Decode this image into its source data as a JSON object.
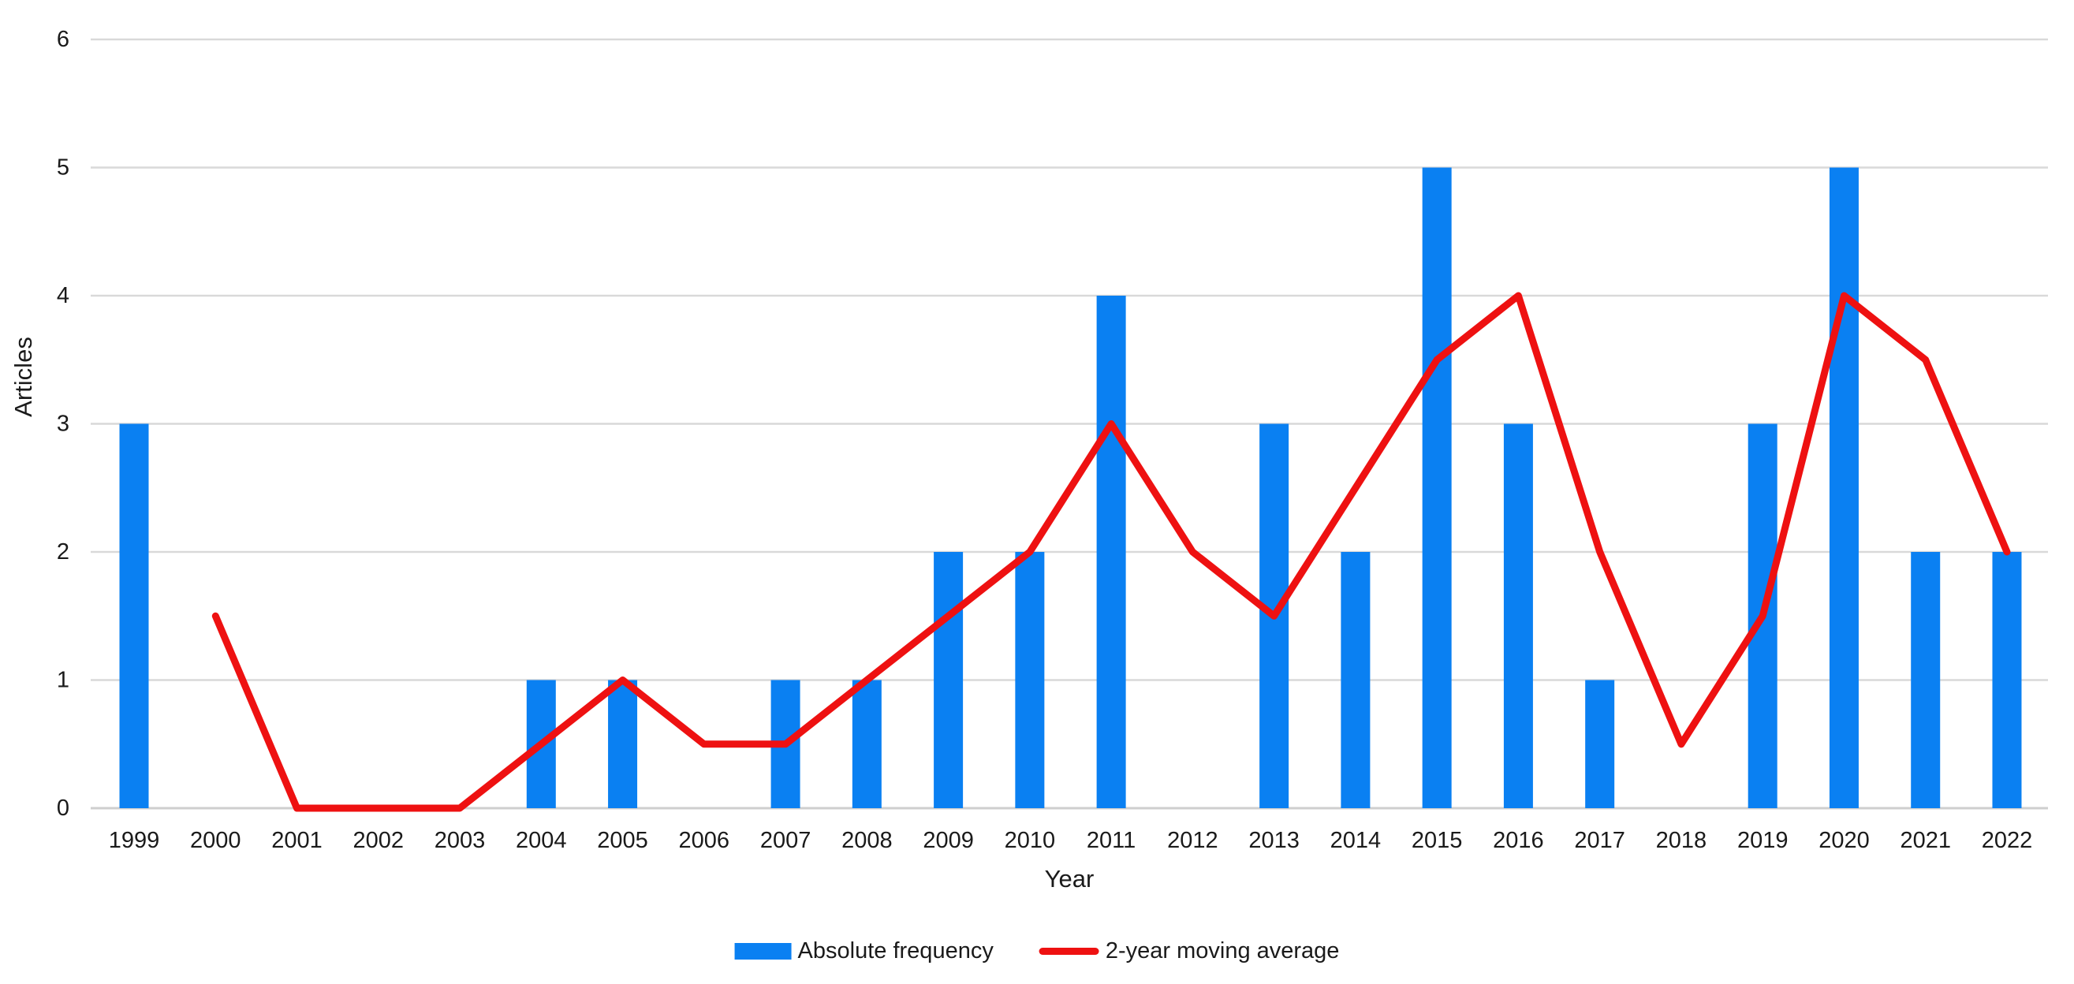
{
  "chart_data": {
    "type": "bar",
    "subtype": "bar-line-combo",
    "title": "",
    "xlabel": "Year",
    "ylabel": "Articles",
    "ylim": [
      0,
      6
    ],
    "yticks": [
      0,
      1,
      2,
      3,
      4,
      5,
      6
    ],
    "grid": true,
    "legend_position": "bottom",
    "categories": [
      "1999",
      "2000",
      "2001",
      "2002",
      "2003",
      "2004",
      "2005",
      "2006",
      "2007",
      "2008",
      "2009",
      "2010",
      "2011",
      "2012",
      "2013",
      "2014",
      "2015",
      "2016",
      "2017",
      "2018",
      "2019",
      "2020",
      "2021",
      "2022"
    ],
    "series": [
      {
        "name": "Absolute frequency",
        "type": "bar",
        "color": "#0a80f2",
        "values": [
          3,
          0,
          0,
          0,
          0,
          1,
          1,
          0,
          1,
          1,
          2,
          2,
          4,
          0,
          3,
          2,
          5,
          3,
          1,
          0,
          3,
          5,
          2,
          2
        ]
      },
      {
        "name": "2-year moving average",
        "type": "line",
        "color": "#ee1111",
        "values": [
          null,
          1.5,
          0,
          0,
          0,
          0.5,
          1,
          0.5,
          0.5,
          1,
          1.5,
          2,
          3,
          2,
          1.5,
          2.5,
          3.5,
          4,
          2,
          0.5,
          1.5,
          4,
          3.5,
          2
        ]
      }
    ],
    "colors": {
      "gridline": "#d9d9d9",
      "baseline": "#cfcfcf",
      "text": "#1a1a1a"
    }
  }
}
